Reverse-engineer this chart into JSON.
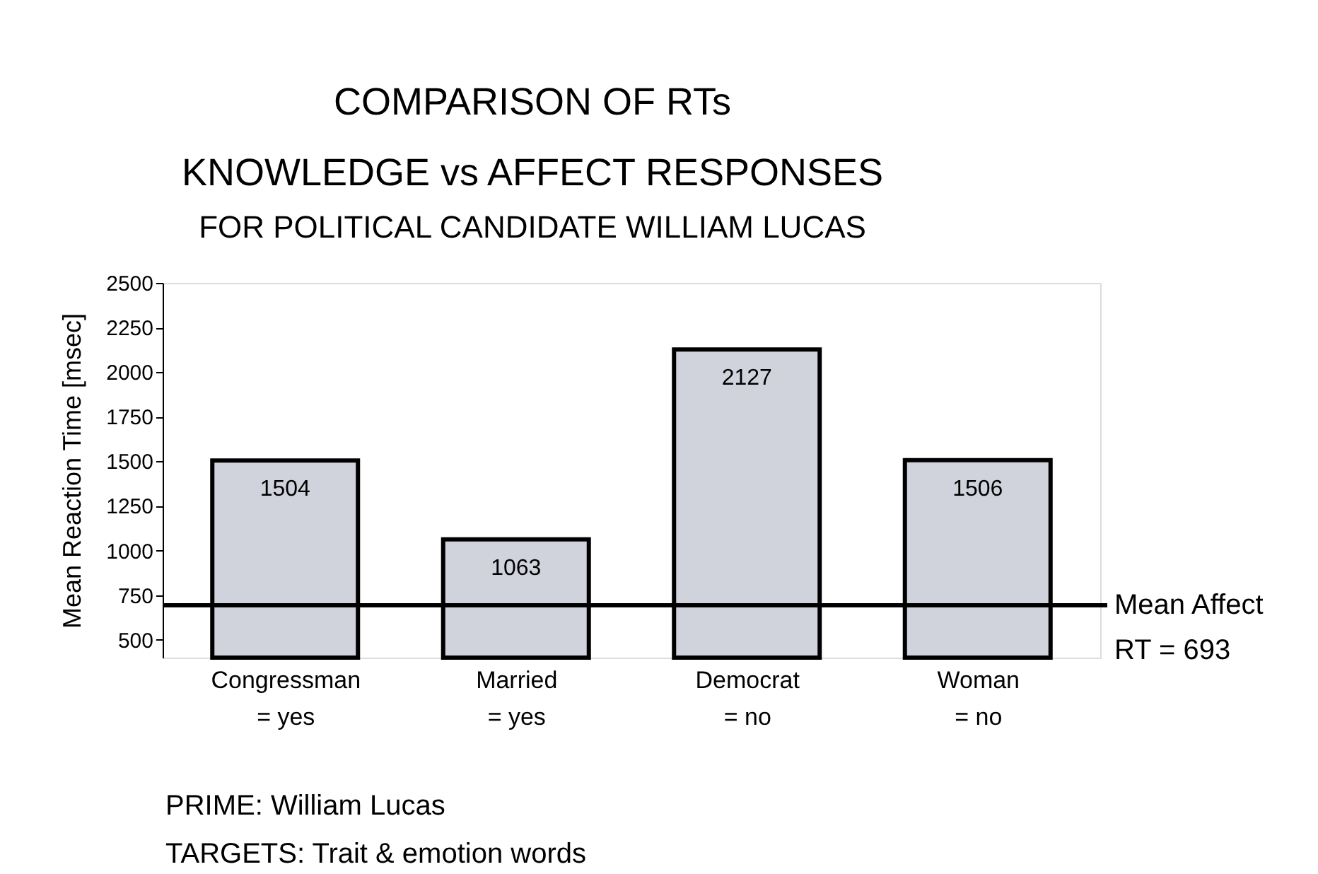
{
  "chart_data": {
    "type": "bar",
    "title": "COMPARISON  OF  RTs\nKNOWLEDGE vs AFFECT  RESPONSES",
    "subtitle": "FOR  POLITICAL CANDIDATE WILLIAM  LUCAS",
    "ylabel": "Mean Reaction Time [msec]",
    "categories": [
      "Congressman\n= yes",
      "Married\n= yes",
      "Democrat\n= no",
      "Woman\n= no"
    ],
    "values": [
      1504,
      1063,
      2127,
      1506
    ],
    "color": "#d0d2dc",
    "ylim": [
      400,
      2500
    ],
    "yticks": [
      500,
      750,
      1000,
      1250,
      1500,
      1750,
      2000,
      2250,
      2500
    ],
    "data_labels": true,
    "grid": false,
    "ref_lines": [
      {
        "axis": "y",
        "value": 693,
        "label": "Mean Affect\nRT = 693"
      }
    ],
    "annotations": [
      "PRIME:  William Lucas",
      "TARGETS:  Trait & emotion words"
    ]
  }
}
